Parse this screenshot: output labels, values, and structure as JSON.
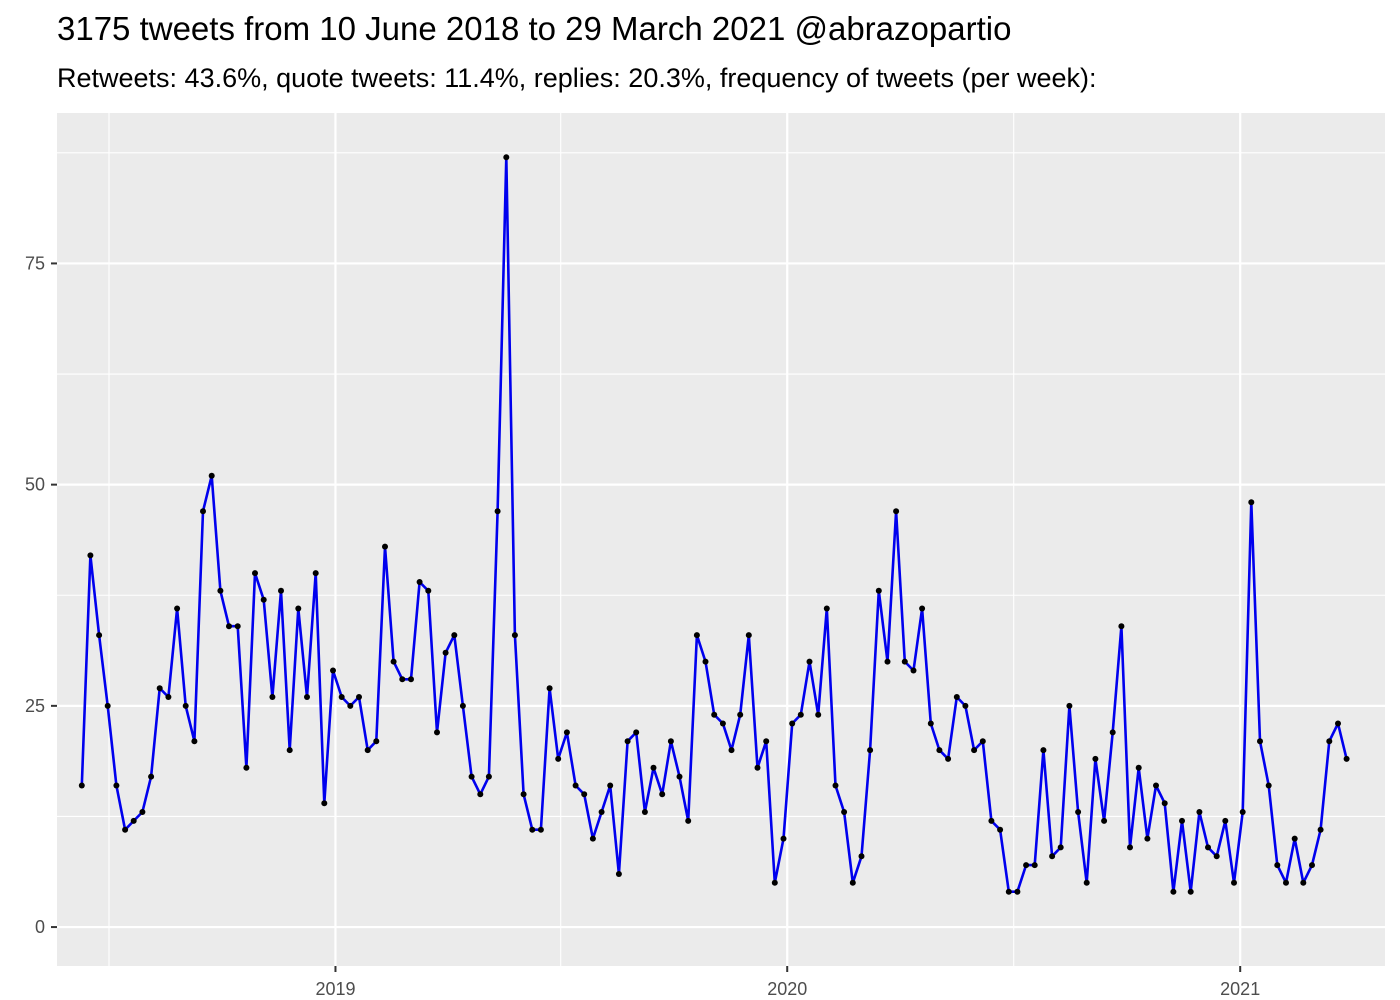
{
  "chart_data": {
    "type": "line",
    "title": "3175 tweets from 10 June 2018 to 29 March 2021 @abrazopartio",
    "subtitle": "Retweets: 43.6%, quote tweets: 11.4%, replies: 20.3%, frequency of tweets (per week):",
    "xlabel": "",
    "ylabel": "",
    "x_ticks": [
      "2019",
      "2020",
      "2021"
    ],
    "y_ticks": [
      "0",
      "25",
      "50",
      "75"
    ],
    "ylim": [
      -4.4,
      92
    ],
    "xlim": [
      "2018-05-21",
      "2021-04-28"
    ],
    "grid": true,
    "background": "#ebebeb",
    "line_color": "#0000ee",
    "point_color": "#000000",
    "x": [
      "2018-06-10",
      "2018-06-17",
      "2018-06-24",
      "2018-07-01",
      "2018-07-08",
      "2018-07-15",
      "2018-07-22",
      "2018-07-29",
      "2018-08-05",
      "2018-08-12",
      "2018-08-19",
      "2018-08-26",
      "2018-09-02",
      "2018-09-09",
      "2018-09-16",
      "2018-09-23",
      "2018-09-30",
      "2018-10-07",
      "2018-10-14",
      "2018-10-21",
      "2018-10-28",
      "2018-11-04",
      "2018-11-11",
      "2018-11-18",
      "2018-11-25",
      "2018-12-02",
      "2018-12-09",
      "2018-12-16",
      "2018-12-23",
      "2018-12-30",
      "2019-01-06",
      "2019-01-13",
      "2019-01-20",
      "2019-01-27",
      "2019-02-03",
      "2019-02-10",
      "2019-02-17",
      "2019-02-24",
      "2019-03-03",
      "2019-03-10",
      "2019-03-17",
      "2019-03-24",
      "2019-03-31",
      "2019-04-07",
      "2019-04-14",
      "2019-04-21",
      "2019-04-28",
      "2019-05-05",
      "2019-05-12",
      "2019-05-19",
      "2019-05-26",
      "2019-06-02",
      "2019-06-09",
      "2019-06-16",
      "2019-06-23",
      "2019-06-30",
      "2019-07-07",
      "2019-07-14",
      "2019-07-21",
      "2019-07-28",
      "2019-08-04",
      "2019-08-11",
      "2019-08-18",
      "2019-08-25",
      "2019-09-01",
      "2019-09-08",
      "2019-09-15",
      "2019-09-22",
      "2019-09-29",
      "2019-10-06",
      "2019-10-13",
      "2019-10-20",
      "2019-10-27",
      "2019-11-03",
      "2019-11-10",
      "2019-11-17",
      "2019-11-24",
      "2019-12-01",
      "2019-12-08",
      "2019-12-15",
      "2019-12-22",
      "2019-12-29",
      "2020-01-05",
      "2020-01-12",
      "2020-01-19",
      "2020-01-26",
      "2020-02-02",
      "2020-02-09",
      "2020-02-16",
      "2020-02-23",
      "2020-03-01",
      "2020-03-08",
      "2020-03-15",
      "2020-03-22",
      "2020-03-29",
      "2020-04-05",
      "2020-04-12",
      "2020-04-19",
      "2020-04-26",
      "2020-05-03",
      "2020-05-10",
      "2020-05-17",
      "2020-05-24",
      "2020-05-31",
      "2020-06-07",
      "2020-06-14",
      "2020-06-21",
      "2020-06-28",
      "2020-07-05",
      "2020-07-12",
      "2020-07-19",
      "2020-07-26",
      "2020-08-02",
      "2020-08-09",
      "2020-08-16",
      "2020-08-23",
      "2020-08-30",
      "2020-09-06",
      "2020-09-13",
      "2020-09-20",
      "2020-09-27",
      "2020-10-04",
      "2020-10-11",
      "2020-10-18",
      "2020-10-25",
      "2020-11-01",
      "2020-11-08",
      "2020-11-15",
      "2020-11-22",
      "2020-11-29",
      "2020-12-06",
      "2020-12-13",
      "2020-12-20",
      "2020-12-27",
      "2021-01-03",
      "2021-01-10",
      "2021-01-17",
      "2021-01-24",
      "2021-01-31",
      "2021-02-07",
      "2021-02-14",
      "2021-02-21",
      "2021-02-28",
      "2021-03-07",
      "2021-03-14",
      "2021-03-21",
      "2021-03-28"
    ],
    "series": [
      {
        "values": [
          16,
          42,
          33,
          25,
          16,
          11,
          12,
          13,
          17,
          27,
          26,
          36,
          25,
          21,
          47,
          51,
          38,
          34,
          34,
          18,
          40,
          37,
          26,
          38,
          20,
          36,
          26,
          40,
          14,
          29,
          26,
          25,
          26,
          20,
          21,
          43,
          30,
          28,
          28,
          39,
          38,
          22,
          31,
          33,
          25,
          17,
          15,
          17,
          47,
          87,
          33,
          15,
          11,
          11,
          27,
          19,
          22,
          16,
          15,
          10,
          13,
          16,
          6,
          21,
          22,
          13,
          18,
          15,
          21,
          17,
          12,
          33,
          30,
          24,
          23,
          20,
          24,
          33,
          18,
          21,
          5,
          10,
          23,
          24,
          30,
          24,
          36,
          16,
          13,
          5,
          8,
          20,
          38,
          30,
          47,
          30,
          29,
          36,
          23,
          20,
          19,
          26,
          25,
          20,
          21,
          12,
          11,
          4,
          4,
          7,
          7,
          20,
          8,
          9,
          25,
          13,
          5,
          19,
          12,
          22,
          34,
          9,
          18,
          10,
          16,
          14,
          4,
          12,
          4,
          13,
          9,
          8,
          12,
          5,
          13,
          48,
          21,
          16,
          7,
          5,
          10,
          5,
          7,
          11,
          21,
          23,
          19
        ]
      }
    ]
  }
}
